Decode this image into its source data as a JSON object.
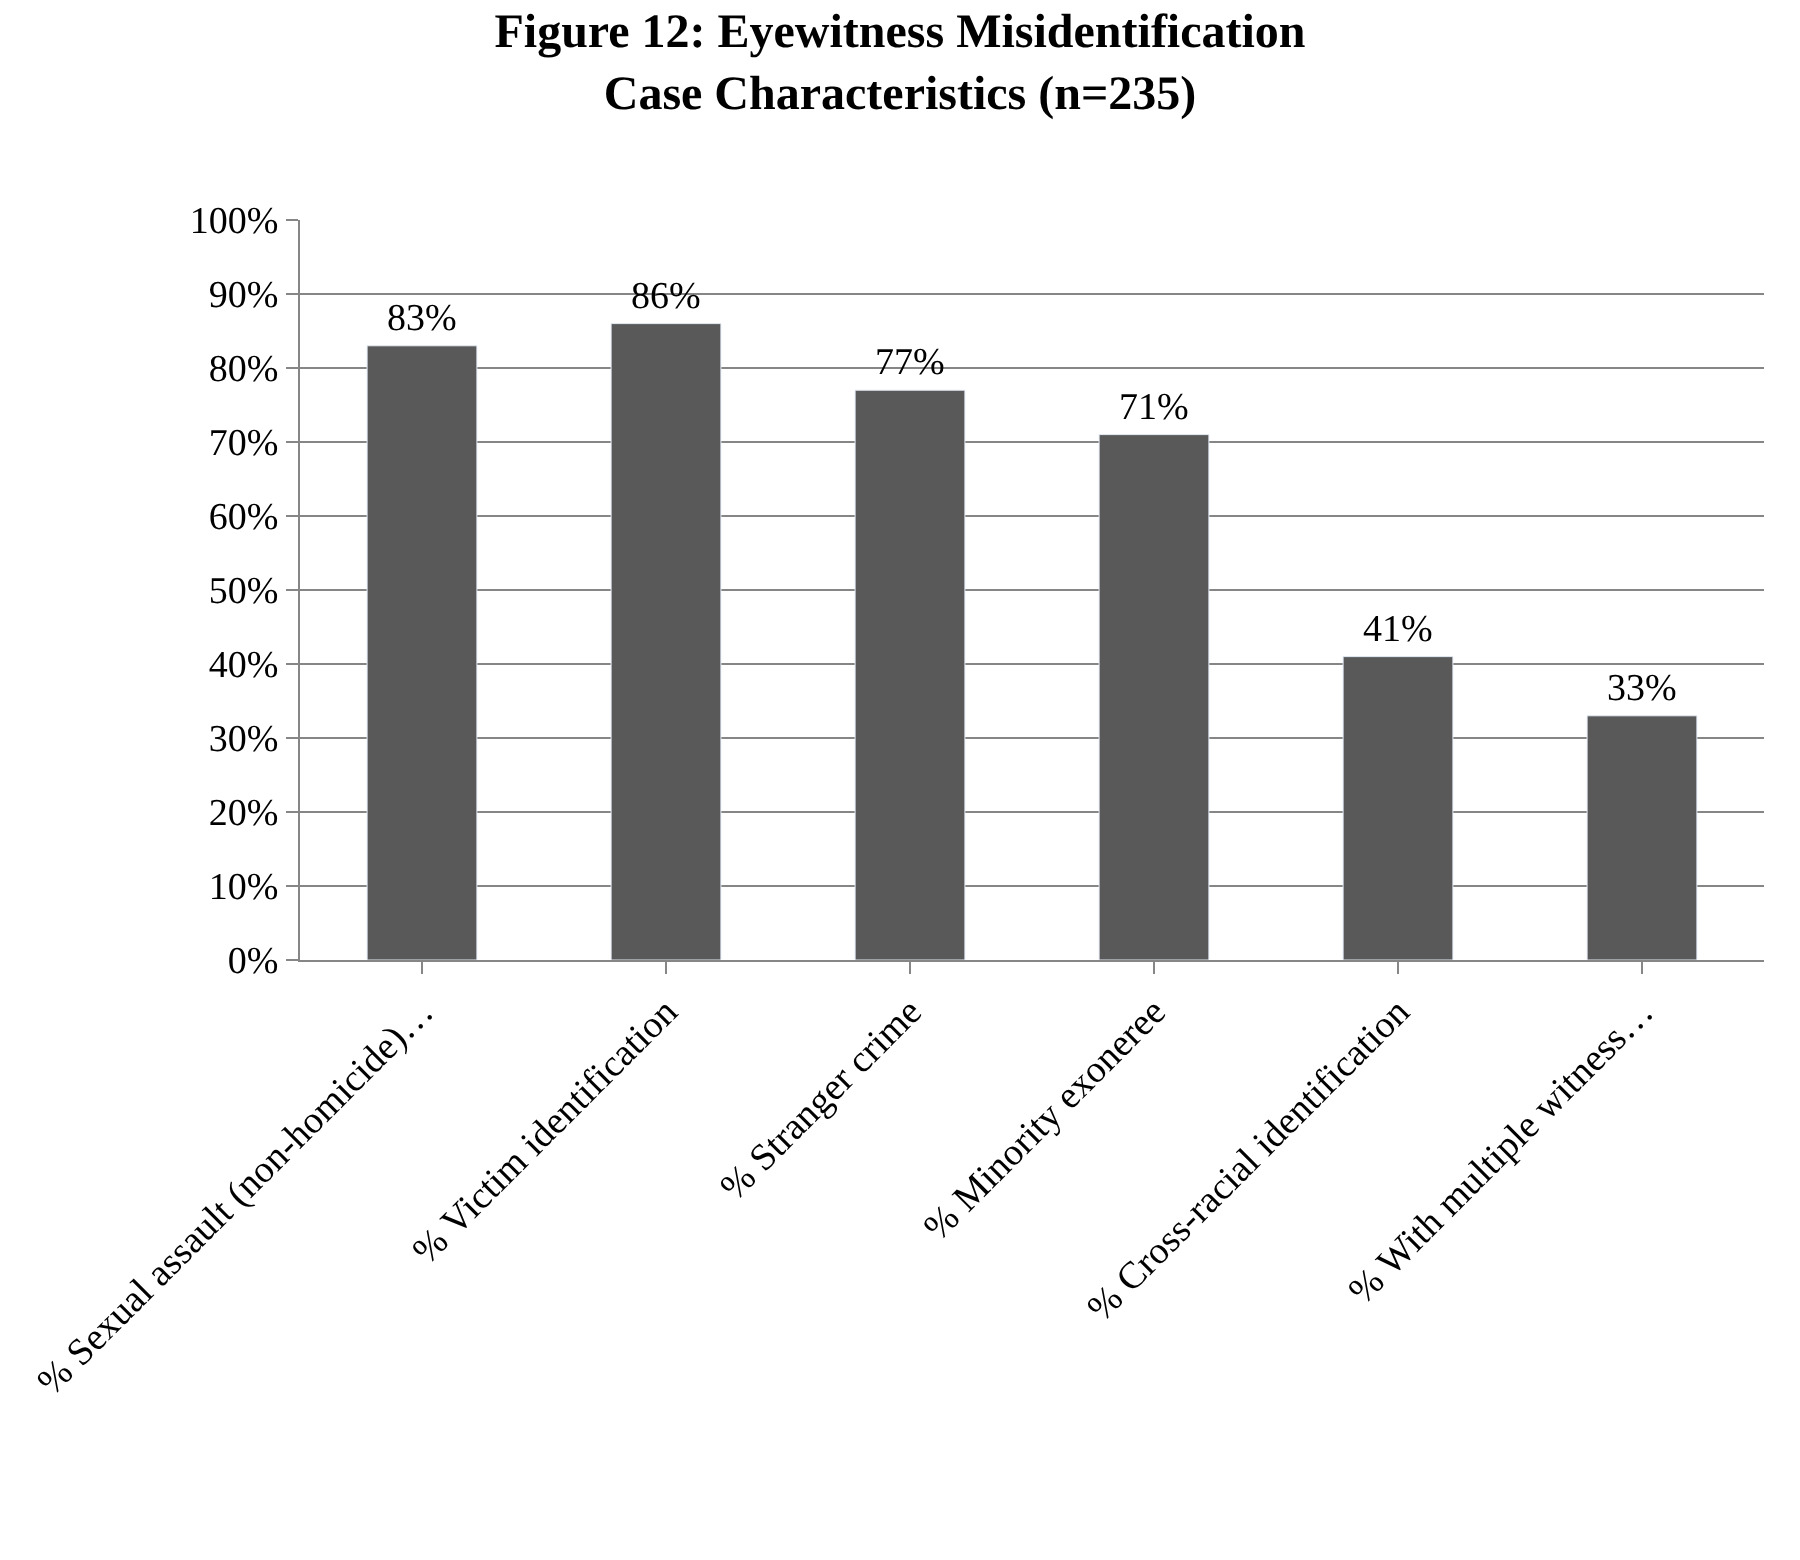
{
  "chart_data": {
    "type": "bar",
    "title": "Figure 12: Eyewitness Misidentification\nCase Characteristics (n=235)",
    "categories": [
      "% Sexual assault (non-homicide)…",
      "% Victim identification",
      "% Stranger crime",
      "% Minority exoneree",
      "% Cross-racial identification",
      "% With multiple witness…"
    ],
    "values": [
      83,
      86,
      77,
      71,
      41,
      33
    ],
    "value_labels": [
      "83%",
      "86%",
      "77%",
      "71%",
      "41%",
      "33%"
    ],
    "color": "#595959",
    "ylim": [
      0,
      100
    ],
    "yticks": [
      {
        "value": 0,
        "label": "0%"
      },
      {
        "value": 10,
        "label": "10%"
      },
      {
        "value": 20,
        "label": "20%"
      },
      {
        "value": 30,
        "label": "30%"
      },
      {
        "value": 40,
        "label": "40%"
      },
      {
        "value": 50,
        "label": "50%"
      },
      {
        "value": 60,
        "label": "60%"
      },
      {
        "value": 70,
        "label": "70%"
      },
      {
        "value": 80,
        "label": "80%"
      },
      {
        "value": 90,
        "label": "90%"
      },
      {
        "value": 100,
        "label": "100%"
      }
    ],
    "grid": "y"
  }
}
